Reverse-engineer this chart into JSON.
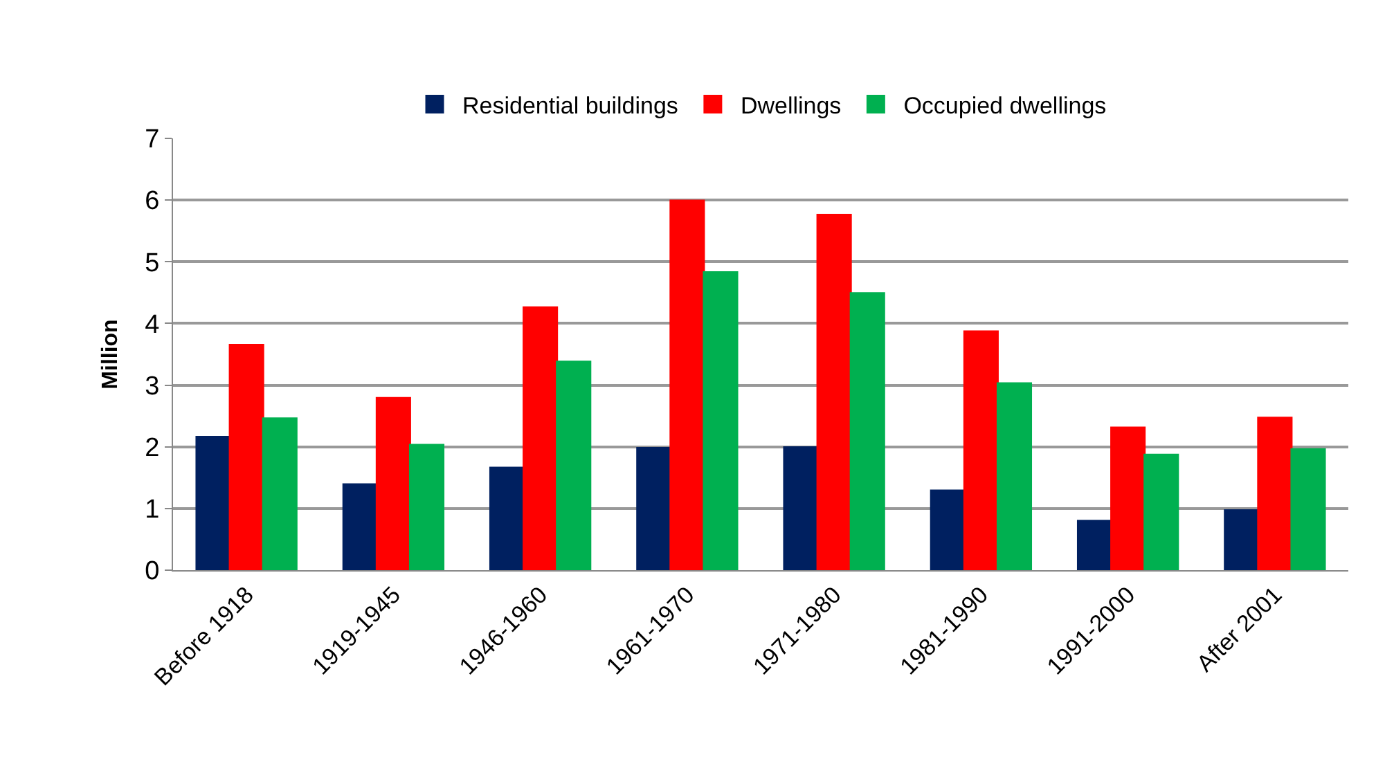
{
  "chart_data": {
    "type": "bar",
    "ylabel": "Million",
    "categories": [
      "Before 1918",
      "1919-1945",
      "1946-1960",
      "1961-1970",
      "1971-1980",
      "1981-1990",
      "1991-2000",
      "After 2001"
    ],
    "series": [
      {
        "name": "Residential buildings",
        "color": "#002060",
        "values": [
          2.16,
          1.39,
          1.66,
          1.98,
          1.99,
          1.29,
          0.8,
          0.97
        ]
      },
      {
        "name": "Dwellings",
        "color": "#ff0000",
        "values": [
          3.65,
          2.79,
          4.26,
          5.99,
          5.76,
          3.87,
          2.31,
          2.47
        ]
      },
      {
        "name": "Occupied dwellings",
        "color": "#00b050",
        "values": [
          2.46,
          2.03,
          3.38,
          4.83,
          4.49,
          3.03,
          1.87,
          1.96
        ]
      }
    ],
    "ylim": [
      0,
      7
    ],
    "yticks": [
      0,
      1,
      2,
      3,
      4,
      5,
      6,
      7
    ],
    "grid": "y",
    "legend": "top"
  }
}
